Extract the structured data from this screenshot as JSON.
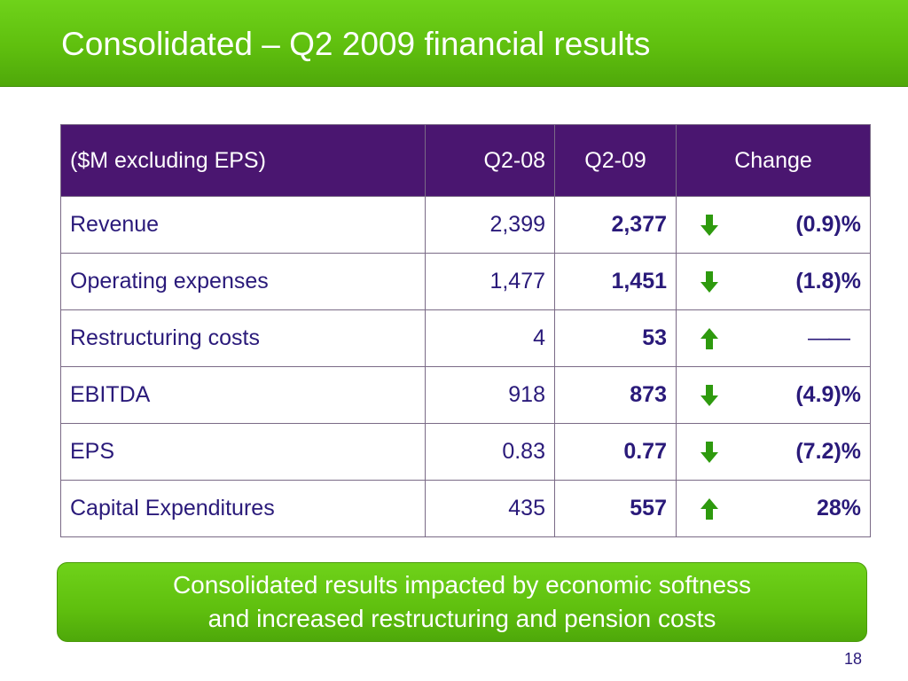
{
  "slide": {
    "title": "Consolidated – Q2 2009 financial results",
    "page_number": "18"
  },
  "table": {
    "headers": {
      "label": "($M excluding EPS)",
      "q208": "Q2-08",
      "q209": "Q2-09",
      "change": "Change"
    },
    "rows": [
      {
        "label": "Revenue",
        "q208": "2,399",
        "q209": "2,377",
        "direction": "down",
        "change": "(0.9)%"
      },
      {
        "label": "Operating expenses",
        "q208": "1,477",
        "q209": "1,451",
        "direction": "down",
        "change": "(1.8)%"
      },
      {
        "label": "Restructuring costs",
        "q208": "4",
        "q209": "53",
        "direction": "up",
        "change": "——"
      },
      {
        "label": "EBITDA",
        "q208": "918",
        "q209": "873",
        "direction": "down",
        "change": "(4.9)%"
      },
      {
        "label": "EPS",
        "q208": "0.83",
        "q209": "0.77",
        "direction": "down",
        "change": "(7.2)%"
      },
      {
        "label": "Capital Expenditures",
        "q208": "435",
        "q209": "557",
        "direction": "up",
        "change": "28%"
      }
    ]
  },
  "callout": {
    "line1": "Consolidated results impacted by economic softness",
    "line2": "and increased restructuring and pension costs"
  },
  "colors": {
    "brand_green": "#5fbf0e",
    "header_purple": "#4a1670",
    "text_navy": "#2a1a7a",
    "arrow_green": "#2e9a0e"
  }
}
